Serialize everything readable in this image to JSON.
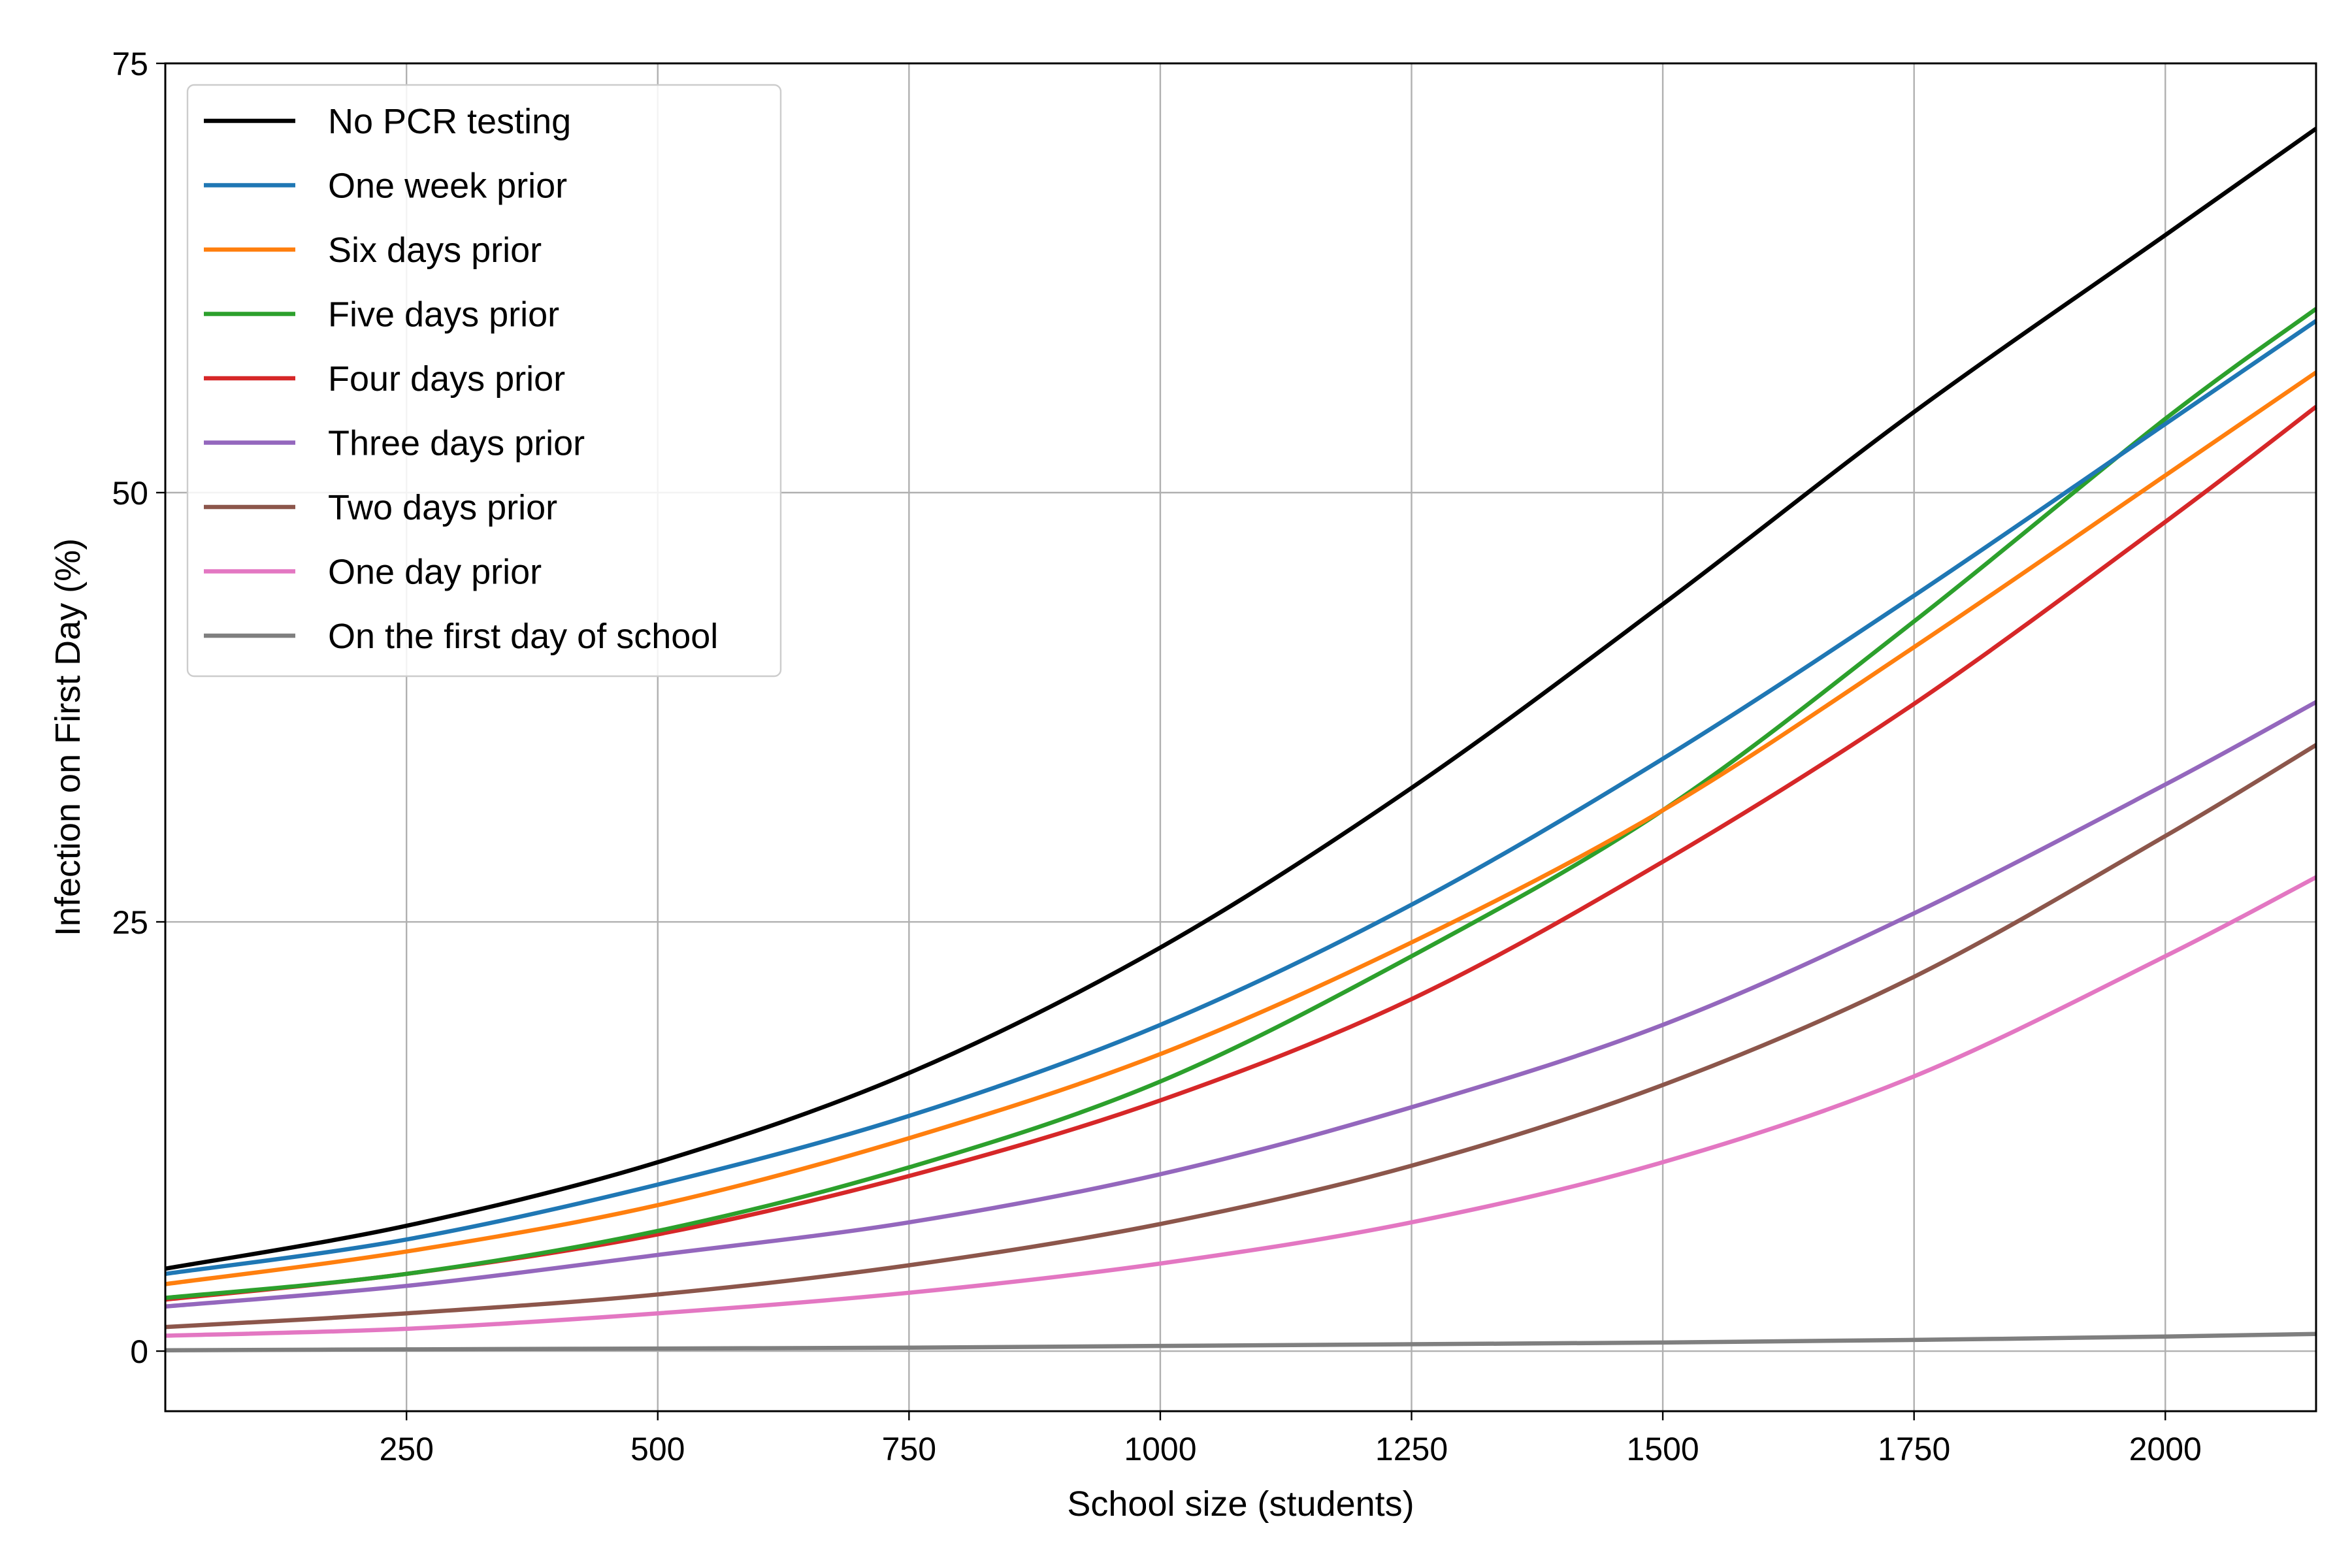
{
  "chart_data": {
    "type": "line",
    "title": "",
    "xlabel": "School size (students)",
    "ylabel": "Infection on First Day (%)",
    "xlim": [
      10,
      2150
    ],
    "ylim": [
      -3.5,
      75
    ],
    "xticks": [
      250,
      500,
      750,
      1000,
      1250,
      1500,
      1750,
      2000
    ],
    "yticks": [
      0,
      25,
      50,
      75
    ],
    "grid": true,
    "legend_position": "top-left",
    "x": [
      10,
      250,
      500,
      750,
      1000,
      1250,
      1500,
      1750,
      2000,
      2150
    ],
    "series": [
      {
        "name": "No PCR testing",
        "color": "#000000",
        "values": [
          4.8,
          7.3,
          11.0,
          16.2,
          23.5,
          32.8,
          43.5,
          54.7,
          65.0,
          71.2
        ]
      },
      {
        "name": "One week prior",
        "color": "#1f77b4",
        "values": [
          4.5,
          6.5,
          9.7,
          13.7,
          19.0,
          26.0,
          34.5,
          44.0,
          54.0,
          60.0
        ]
      },
      {
        "name": "Six days prior",
        "color": "#ff7f0e",
        "values": [
          3.9,
          5.8,
          8.5,
          12.4,
          17.3,
          23.8,
          31.5,
          41.0,
          51.0,
          57.0
        ]
      },
      {
        "name": "Five days prior",
        "color": "#2ca02c",
        "values": [
          3.1,
          4.5,
          7.0,
          10.7,
          15.7,
          23.0,
          31.5,
          42.5,
          54.3,
          60.7
        ]
      },
      {
        "name": "Four days prior",
        "color": "#d62728",
        "values": [
          3.0,
          4.5,
          6.8,
          10.2,
          14.6,
          20.5,
          28.5,
          37.7,
          48.3,
          55.0
        ]
      },
      {
        "name": "Three days prior",
        "color": "#9467bd",
        "values": [
          2.6,
          3.8,
          5.6,
          7.5,
          10.3,
          14.2,
          19.0,
          25.5,
          33.0,
          37.8
        ]
      },
      {
        "name": "Two days prior",
        "color": "#8c564b",
        "values": [
          1.4,
          2.2,
          3.3,
          5.0,
          7.4,
          10.8,
          15.5,
          21.8,
          30.0,
          35.3
        ]
      },
      {
        "name": "One day prior",
        "color": "#e377c2",
        "values": [
          0.9,
          1.3,
          2.2,
          3.4,
          5.1,
          7.5,
          11.0,
          16.0,
          23.0,
          27.6
        ]
      },
      {
        "name": "On the first day of school",
        "color": "#7f7f7f",
        "values": [
          0.05,
          0.1,
          0.15,
          0.2,
          0.3,
          0.4,
          0.5,
          0.65,
          0.85,
          1.0
        ]
      }
    ]
  }
}
